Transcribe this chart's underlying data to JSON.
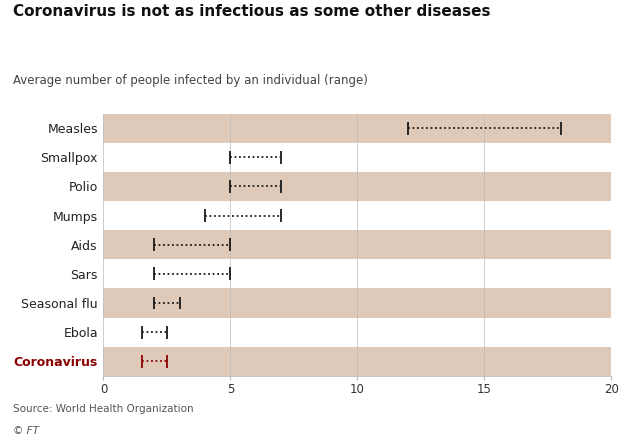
{
  "title": "Coronavirus is not as infectious as some other diseases",
  "subtitle": "Average number of people infected by an individual (range)",
  "source": "Source: World Health Organization",
  "copyright": "© FT",
  "diseases": [
    "Measles",
    "Smallpox",
    "Polio",
    "Mumps",
    "Aids",
    "Sars",
    "Seasonal flu",
    "Ebola",
    "Coronavirus"
  ],
  "ranges": [
    [
      12,
      18
    ],
    [
      5,
      7
    ],
    [
      5,
      7
    ],
    [
      4,
      7
    ],
    [
      2,
      5
    ],
    [
      2,
      5
    ],
    [
      2,
      3
    ],
    [
      1.5,
      2.5
    ],
    [
      1.5,
      2.5
    ]
  ],
  "highlight_index": 8,
  "highlight_color": "#8b0000",
  "normal_color": "#1a1a1a",
  "bg_color_odd": "#dfc9b8",
  "bg_color_even": "#ffffff",
  "xlim": [
    0,
    20
  ],
  "xticks": [
    0,
    5,
    10,
    15,
    20
  ],
  "title_fontsize": 11,
  "subtitle_fontsize": 8.5,
  "label_fontsize": 9,
  "tick_fontsize": 8.5,
  "source_fontsize": 7.5
}
